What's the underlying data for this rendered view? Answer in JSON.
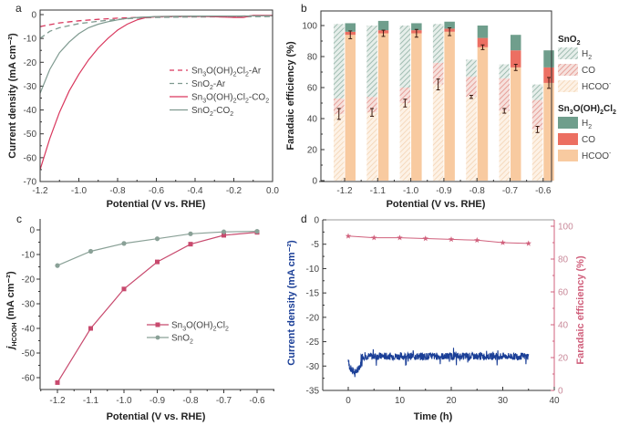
{
  "panels": {
    "a": {
      "label": "a"
    },
    "b": {
      "label": "b"
    },
    "c": {
      "label": "c"
    },
    "d": {
      "label": "d"
    }
  },
  "colors": {
    "pink": "#d9385e",
    "gray_green": "#7f9a90",
    "teal": "#6f9e8c",
    "co_red": "#ec6f62",
    "hcoo_orange": "#f8caa0",
    "navy": "#1b3f97",
    "fe_pink": "#d0607c"
  },
  "chart_data": [
    {
      "id": "a",
      "type": "line",
      "title": "",
      "xlabel": "Potential (V vs. RHE)",
      "ylabel": "Current density (mA cm⁻²)",
      "xlim": [
        -1.2,
        0.0
      ],
      "ylim": [
        -70,
        0
      ],
      "xticks": [
        "-1.2",
        "-1.0",
        "-0.8",
        "-0.6",
        "-0.4",
        "-0.2",
        "0.0"
      ],
      "yticks": [
        "0",
        "-10",
        "-20",
        "-30",
        "-40",
        "-50",
        "-60",
        "-70"
      ],
      "legend_position": "center-right",
      "series": [
        {
          "name": "Sn₃O(OH)₂Cl₂-Ar",
          "style": "dashed",
          "color": "#d9385e",
          "x": [
            -1.2,
            -1.1,
            -1.0,
            -0.9,
            -0.8,
            -0.7,
            -0.6,
            -0.4,
            -0.2,
            -0.1,
            0.0
          ],
          "y": [
            -5,
            -3.5,
            -2.6,
            -2.0,
            -1.5,
            -1.2,
            -1.0,
            -0.8,
            -0.7,
            -0.5,
            -0.5
          ]
        },
        {
          "name": "SnO₂-Ar",
          "style": "dashed",
          "color": "#7f9a90",
          "x": [
            -1.2,
            -1.15,
            -1.1,
            -1.0,
            -0.9,
            -0.8,
            -0.7,
            -0.6,
            -0.4,
            -0.2,
            0.0
          ],
          "y": [
            -10,
            -7,
            -5.5,
            -3.8,
            -2.8,
            -2.0,
            -1.5,
            -1.2,
            -1.0,
            -0.9,
            -0.8
          ]
        },
        {
          "name": "Sn₃O(OH)₂Cl₂-CO₂",
          "style": "solid",
          "color": "#d9385e",
          "x": [
            -1.2,
            -1.15,
            -1.1,
            -1.05,
            -1.0,
            -0.95,
            -0.9,
            -0.85,
            -0.8,
            -0.75,
            -0.7,
            -0.65,
            -0.6,
            -0.4,
            -0.2,
            -0.15,
            -0.1,
            0.0
          ],
          "y": [
            -65,
            -52,
            -41,
            -32,
            -25,
            -19,
            -14,
            -10,
            -6.5,
            -4,
            -2.2,
            -1.2,
            -0.8,
            -0.6,
            -1.2,
            -1.2,
            -0.3,
            -0.3
          ]
        },
        {
          "name": "SnO₂-CO₂",
          "style": "solid",
          "color": "#7f9a90",
          "x": [
            -1.2,
            -1.15,
            -1.1,
            -1.05,
            -1.0,
            -0.95,
            -0.9,
            -0.85,
            -0.8,
            -0.75,
            -0.7,
            -0.6,
            -0.4,
            -0.2,
            0.0
          ],
          "y": [
            -33,
            -23,
            -16,
            -11.5,
            -8,
            -5.5,
            -4,
            -3,
            -2.2,
            -1.6,
            -1.2,
            -0.8,
            -0.6,
            -0.6,
            -0.5
          ]
        }
      ]
    },
    {
      "id": "b",
      "type": "bar",
      "title": "",
      "xlabel": "Potential (V vs. RHE)",
      "ylabel": "Faradaic efficiency (%)",
      "ylim": [
        0,
        110
      ],
      "yticks": [
        "0",
        "20",
        "40",
        "60",
        "80",
        "100"
      ],
      "categories": [
        "-1.2",
        "-1.1",
        "-1.0",
        "-0.9",
        "-0.8",
        "-0.7",
        "-0.6"
      ],
      "legend_position": "right",
      "legend_groups": [
        {
          "title": "SnO₂",
          "entries": [
            "H₂",
            "CO",
            "HCOO⁻"
          ],
          "pattern": "hatched"
        },
        {
          "title": "Sn₃O(OH)₂Cl₂",
          "entries": [
            "H₂",
            "CO",
            "HCOO⁻"
          ],
          "pattern": "solid"
        }
      ],
      "series": [
        {
          "name": "SnO₂ HCOO⁻",
          "stack": "SnO2",
          "values": [
            43,
            44,
            50,
            62,
            54,
            45,
            33
          ],
          "errors": [
            3.5,
            2.5,
            2.5,
            3.5,
            1.0,
            1.5,
            2.0
          ]
        },
        {
          "name": "SnO₂ CO",
          "stack": "SnO2",
          "values": [
            10,
            10,
            10,
            14,
            13,
            21,
            19
          ]
        },
        {
          "name": "SnO₂ H₂",
          "stack": "SnO2",
          "values": [
            48,
            46,
            40,
            25,
            11,
            9,
            10
          ]
        },
        {
          "name": "Sn₃O(OH)₂Cl₂ HCOO⁻",
          "stack": "Sn3O(OH)2Cl2",
          "values": [
            94,
            95,
            95,
            96,
            86,
            73,
            63
          ],
          "errors": [
            2.5,
            2.0,
            2.5,
            2.5,
            1.5,
            2.0,
            3.5
          ]
        },
        {
          "name": "Sn₃O(OH)₂Cl₂ CO",
          "stack": "Sn3O(OH)2Cl2",
          "values": [
            2,
            2,
            2,
            2,
            6,
            11,
            10
          ]
        },
        {
          "name": "Sn₃O(OH)₂Cl₂ H₂",
          "stack": "Sn3O(OH)2Cl2",
          "values": [
            5.5,
            6,
            4.5,
            4.5,
            8,
            10,
            11
          ]
        }
      ]
    },
    {
      "id": "c",
      "type": "line",
      "title": "",
      "xlabel": "Potential (V vs. RHE)",
      "ylabel": "j_HCOOH (mA cm⁻²)",
      "ylabel_main": "j",
      "ylabel_sub": "HCOOH",
      "ylabel_unit": " (mA cm⁻²)",
      "xlim": [
        -1.25,
        -0.55
      ],
      "ylim": [
        -65,
        2
      ],
      "xticks": [
        "-1.2",
        "-1.1",
        "-1.0",
        "-0.9",
        "-0.8",
        "-0.7",
        "-0.6"
      ],
      "yticks": [
        "0",
        "-10",
        "-20",
        "-30",
        "-40",
        "-50",
        "-60"
      ],
      "legend_position": "center-right",
      "x": [
        -1.2,
        -1.1,
        -1.0,
        -0.9,
        -0.8,
        -0.7,
        -0.6
      ],
      "series": [
        {
          "name": "Sn₃O(OH)₂Cl₂",
          "marker": "square",
          "color": "#c84a6e",
          "values": [
            -62,
            -40,
            -24,
            -13,
            -5.8,
            -2.2,
            -1.0
          ]
        },
        {
          "name": "SnO₂",
          "marker": "circle",
          "color": "#8aa197",
          "values": [
            -14.5,
            -8.7,
            -5.5,
            -3.6,
            -1.6,
            -0.8,
            -0.6
          ]
        }
      ]
    },
    {
      "id": "d",
      "type": "line",
      "title": "",
      "xlabel": "Time (h)",
      "ylabel": "Current density (mA cm⁻²)",
      "ylabel_right": "Faradaic efficiency (%)",
      "xlim": [
        -5,
        40
      ],
      "ylim": [
        -35,
        0
      ],
      "ylim_right": [
        0,
        105
      ],
      "xticks": [
        "0",
        "10",
        "20",
        "30",
        "40"
      ],
      "yticks": [
        "0",
        "-5",
        "-10",
        "-15",
        "-20",
        "-25",
        "-30",
        "-35"
      ],
      "yticks_right": [
        "0",
        "20",
        "40",
        "60",
        "80",
        "100"
      ],
      "series": [
        {
          "name": "Current density",
          "axis": "left",
          "color": "#1b3f97",
          "mean": -28,
          "noise_amplitude": 1.5,
          "x_range": [
            0,
            35
          ],
          "initial_dip": -31.5
        },
        {
          "name": "Faradaic efficiency",
          "axis": "right",
          "marker": "star",
          "color": "#d0607c",
          "x": [
            0,
            5,
            10,
            15,
            20,
            25,
            30,
            35
          ],
          "values": [
            94,
            93,
            93,
            92.5,
            92,
            91.5,
            90,
            89.5
          ]
        }
      ]
    }
  ]
}
